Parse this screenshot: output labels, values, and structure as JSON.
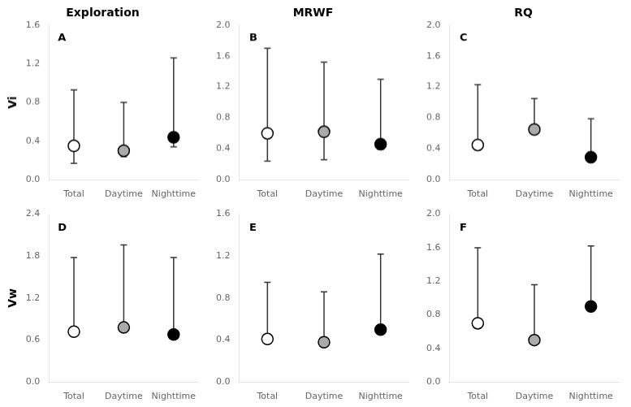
{
  "chart_data": [
    {
      "type": "errorbar",
      "title": "Exploration",
      "y_label": "Vi",
      "annotations": [
        "A"
      ],
      "categories": [
        "Total",
        "Daytime",
        "Nighttime"
      ],
      "values": [
        0.35,
        0.3,
        0.44
      ],
      "error_upper": [
        0.58,
        0.5,
        0.82
      ],
      "error_lower": [
        0.18,
        0.06,
        0.1
      ],
      "colors": [
        "white",
        "#aaaaaa",
        "black"
      ],
      "ylim": [
        0.0,
        1.6
      ],
      "yticks": [
        {
          "value": 0,
          "label": "0.0"
        },
        0.4,
        0.8,
        1.2,
        1.6
      ],
      "grid": false
    },
    {
      "type": "errorbar",
      "title": "MRWF",
      "annotations": [
        "B"
      ],
      "categories": [
        "Total",
        "Daytime",
        "Nighttime"
      ],
      "values": [
        0.6,
        0.62,
        0.46
      ],
      "error_upper": [
        1.1,
        0.9,
        0.84
      ],
      "error_lower": [
        0.36,
        0.36,
        0.07
      ],
      "colors": [
        "white",
        "#aaaaaa",
        "black"
      ],
      "ylim": [
        0.0,
        2.0
      ],
      "yticks": [
        {
          "value": 0,
          "label": "0.0"
        },
        0.4,
        0.8,
        1.2,
        1.6,
        {
          "value": 2,
          "label": "2.0"
        }
      ],
      "grid": false
    },
    {
      "type": "errorbar",
      "title": "RQ",
      "annotations": [
        "C"
      ],
      "categories": [
        "Total",
        "Daytime",
        "Nighttime"
      ],
      "values": [
        0.45,
        0.65,
        0.29
      ],
      "error_upper": [
        0.78,
        0.4,
        0.5
      ],
      "error_lower": [
        0.05,
        0.05,
        0.05
      ],
      "colors": [
        "white",
        "#aaaaaa",
        "black"
      ],
      "ylim": [
        0.0,
        2.0
      ],
      "yticks": [
        {
          "value": 0,
          "label": "0.0"
        },
        0.4,
        0.8,
        1.2,
        1.6,
        {
          "value": 2,
          "label": "2.0"
        }
      ],
      "grid": false
    },
    {
      "type": "errorbar",
      "y_label": "Vw",
      "annotations": [
        "D"
      ],
      "categories": [
        "Total",
        "Daytime",
        "Nighttime"
      ],
      "values": [
        0.72,
        0.78,
        0.68
      ],
      "error_upper": [
        1.06,
        1.18,
        1.1
      ],
      "error_lower": [
        0.06,
        0.06,
        0.06
      ],
      "colors": [
        "white",
        "#aaaaaa",
        "black"
      ],
      "ylim": [
        0.0,
        2.4
      ],
      "yticks": [
        {
          "value": 0,
          "label": "0.0"
        },
        0.6,
        1.2,
        1.8,
        2.4
      ],
      "grid": false
    },
    {
      "type": "errorbar",
      "annotations": [
        "E"
      ],
      "categories": [
        "Total",
        "Daytime",
        "Nighttime"
      ],
      "values": [
        0.41,
        0.38,
        0.5
      ],
      "error_upper": [
        0.54,
        0.48,
        0.72
      ],
      "error_lower": [
        0.04,
        0.04,
        0.04
      ],
      "colors": [
        "white",
        "#aaaaaa",
        "black"
      ],
      "ylim": [
        0.0,
        1.6
      ],
      "yticks": [
        {
          "value": 0,
          "label": "0.0"
        },
        0.4,
        0.8,
        1.2,
        1.6
      ],
      "grid": false
    },
    {
      "type": "errorbar",
      "annotations": [
        "F"
      ],
      "categories": [
        "Total",
        "Daytime",
        "Nighttime"
      ],
      "values": [
        0.7,
        0.5,
        0.9
      ],
      "error_upper": [
        0.9,
        0.66,
        0.72
      ],
      "error_lower": [
        0.04,
        0.04,
        0.04
      ],
      "colors": [
        "white",
        "#aaaaaa",
        "black"
      ],
      "ylim": [
        0.0,
        2.0
      ],
      "yticks": [
        {
          "value": 0,
          "label": "0.0"
        },
        0.4,
        0.8,
        1.2,
        1.6,
        {
          "value": 2,
          "label": "2.0"
        }
      ],
      "grid": false
    }
  ]
}
